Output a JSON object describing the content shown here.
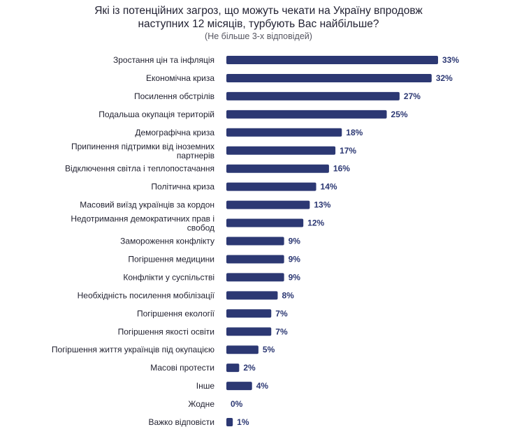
{
  "chart_data": {
    "type": "bar",
    "orientation": "horizontal",
    "title_lines": [
      "Які із потенційних загроз, що можуть чекати на Україну впродовж",
      "наступних 12 місяців, турбують Вас найбільше?"
    ],
    "subtitle": "(Не більше 3-х відповідей)",
    "categories": [
      [
        "Зростання цін та інфляція"
      ],
      [
        "Економічна криза"
      ],
      [
        "Посилення обстрілів"
      ],
      [
        "Подальша окупація територій"
      ],
      [
        "Демографічна криза"
      ],
      [
        "Припинення підтримки від іноземних",
        "партнерів"
      ],
      [
        "Відключення світла і теплопостачання"
      ],
      [
        "Політична криза"
      ],
      [
        "Масовий виїзд українців за кордон"
      ],
      [
        "Недотримання демократичних прав і",
        "свобод"
      ],
      [
        "Замороження конфлікту"
      ],
      [
        "Погіршення медицини"
      ],
      [
        "Конфлікти у суспільстві"
      ],
      [
        "Необхідність посилення мобілізації"
      ],
      [
        "Погіршення екології"
      ],
      [
        "Погіршення якості освіти"
      ],
      [
        "Погіршення життя українців під окупацією"
      ],
      [
        "Масові протести"
      ],
      [
        "Інше"
      ],
      [
        "Жодне"
      ],
      [
        "Важко відповісти"
      ]
    ],
    "values": [
      33,
      32,
      27,
      25,
      18,
      17,
      16,
      14,
      13,
      12,
      9,
      9,
      9,
      8,
      7,
      7,
      5,
      2,
      4,
      0,
      1
    ],
    "value_labels": [
      "33%",
      "32%",
      "27%",
      "25%",
      "18%",
      "17%",
      "16%",
      "14%",
      "13%",
      "12%",
      "9%",
      "9%",
      "9%",
      "8%",
      "7%",
      "7%",
      "5%",
      "2%",
      "4%",
      "0%",
      "1%"
    ],
    "xlim": [
      0,
      33
    ],
    "grid": false,
    "bar_color": "#2c3873",
    "label_color": "#2c3873"
  }
}
